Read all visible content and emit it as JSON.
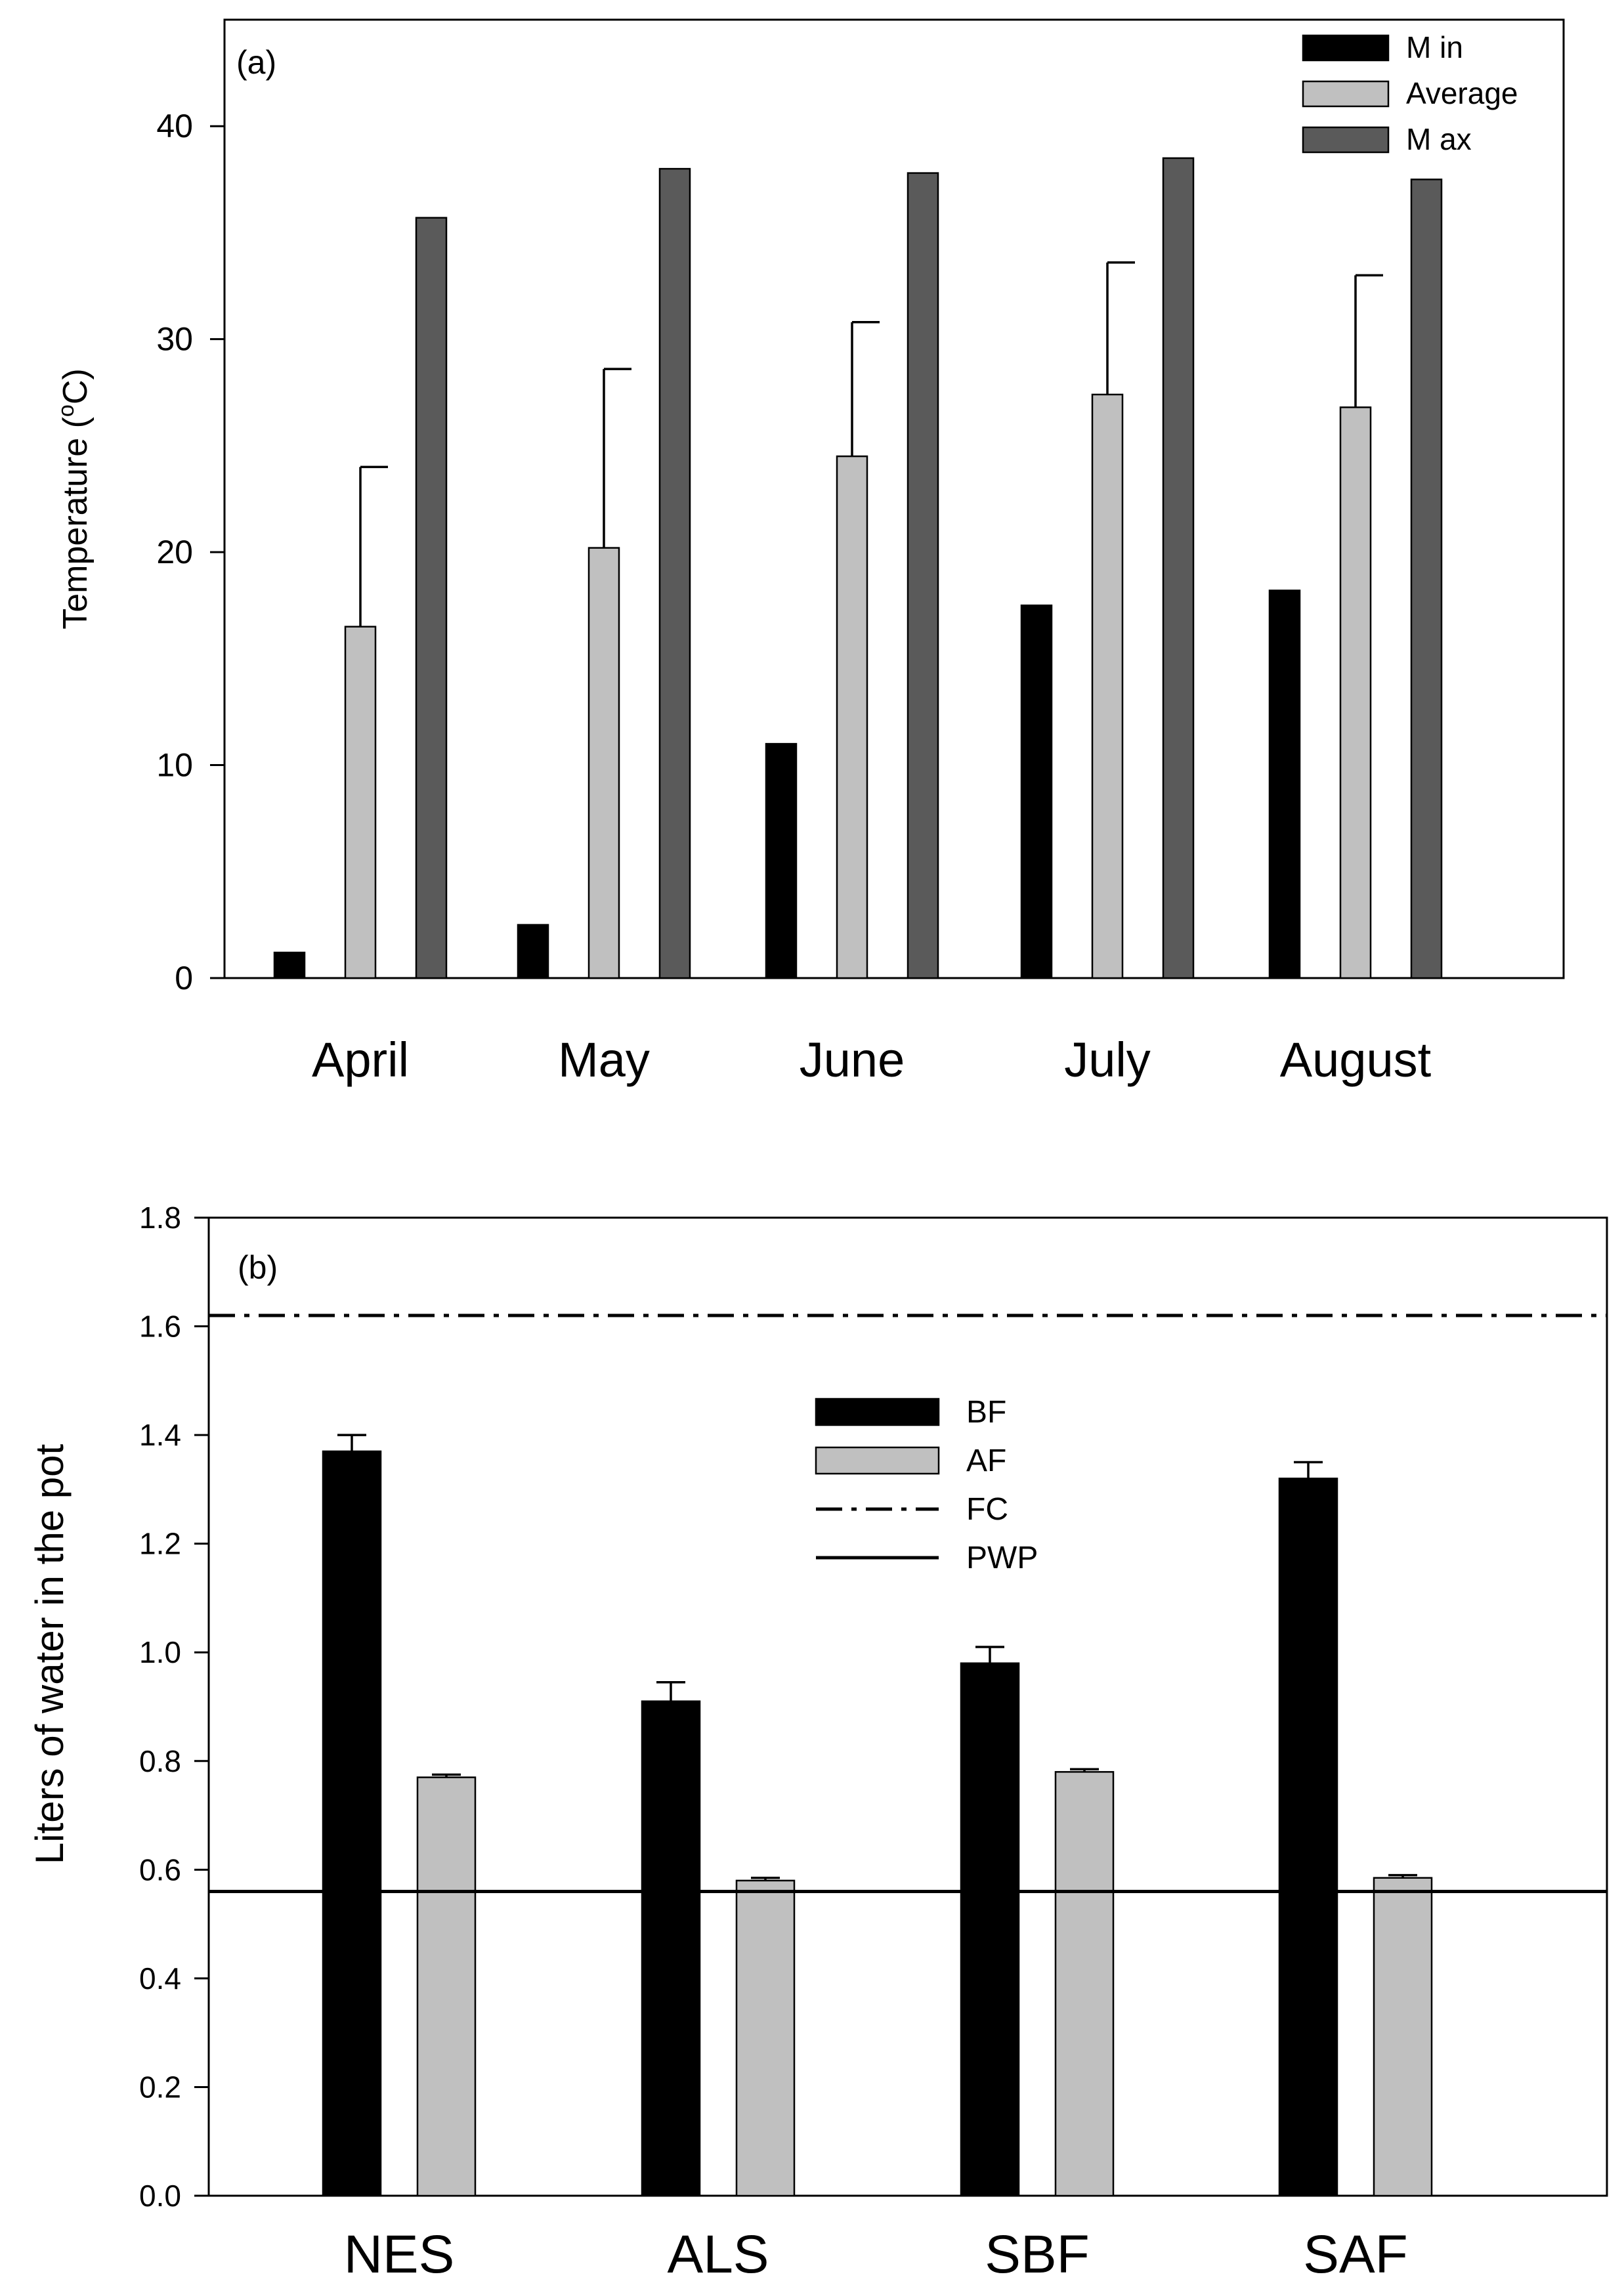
{
  "chart_data": [
    {
      "type": "bar",
      "panel_label": "(a)",
      "categories": [
        "April",
        "May",
        "June",
        "July",
        "August"
      ],
      "series": [
        {
          "name": "M in",
          "color": "#000000",
          "values": [
            1.2,
            2.5,
            11.0,
            17.5,
            18.2
          ]
        },
        {
          "name": "Average",
          "color": "#c0c0c0",
          "values": [
            16.5,
            20.2,
            24.5,
            27.4,
            26.8
          ],
          "error_upper": [
            7.5,
            8.4,
            6.3,
            6.2,
            6.2
          ]
        },
        {
          "name": "M ax",
          "color": "#5a5a5a",
          "values": [
            35.7,
            38.0,
            37.8,
            38.5,
            37.5
          ]
        }
      ],
      "ylabel_prefix": "Temperature (",
      "ylabel_sup": "o",
      "ylabel_suffix": "C)",
      "ylim": [
        0,
        45
      ],
      "yticks": [
        0,
        10,
        20,
        30,
        40
      ],
      "ytick_labels": [
        "0",
        "10",
        "20",
        "30",
        "40"
      ],
      "legend_position": "top-right",
      "grid": false
    },
    {
      "type": "bar",
      "panel_label": "(b)",
      "categories": [
        "NES",
        "ALS",
        "SBF",
        "SAF"
      ],
      "series": [
        {
          "name": "BF",
          "color": "#000000",
          "values": [
            1.37,
            0.91,
            0.98,
            1.32
          ],
          "error_upper": [
            0.03,
            0.035,
            0.03,
            0.03
          ]
        },
        {
          "name": "AF",
          "color": "#c0c0c0",
          "values": [
            0.77,
            0.58,
            0.78,
            0.585
          ],
          "error_upper": [
            0.005,
            0.005,
            0.005,
            0.005
          ]
        }
      ],
      "reference_lines": [
        {
          "name": "FC",
          "value": 1.62,
          "style": "dash-dot"
        },
        {
          "name": "PWP",
          "value": 0.56,
          "style": "solid"
        }
      ],
      "ylabel": "Liters of water in the pot",
      "ylim": [
        0,
        1.8
      ],
      "yticks": [
        0,
        0.2,
        0.4,
        0.6,
        0.8,
        1.0,
        1.2,
        1.4,
        1.6,
        1.8
      ],
      "ytick_labels": [
        "0.0",
        "0.2",
        "0.4",
        "0.6",
        "0.8",
        "1.0",
        "1.2",
        "1.4",
        "1.6",
        "1.8"
      ],
      "legend_position": "center-top",
      "legend_order": [
        "BF",
        "AF",
        "FC",
        "PWP"
      ],
      "grid": false
    }
  ]
}
